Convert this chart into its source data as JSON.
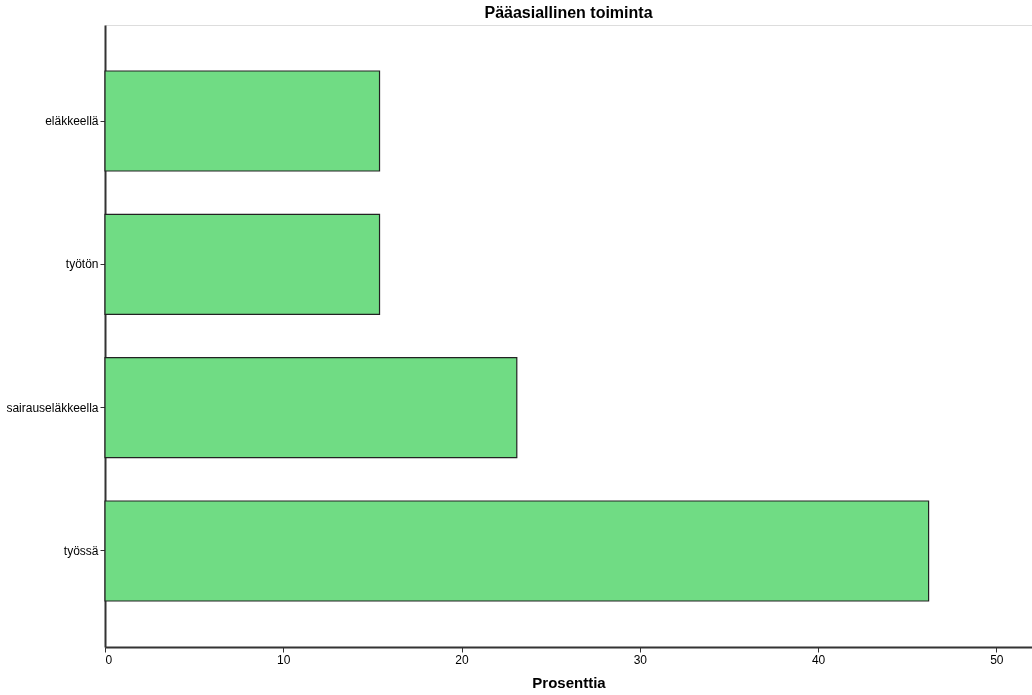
{
  "chart_data": {
    "type": "bar",
    "orientation": "horizontal",
    "title": "Pääasiallinen toiminta",
    "xlabel": "Prosenttia",
    "categories": [
      "eläkkeellä",
      "työtön",
      "sairauseläkkeella",
      "työssä"
    ],
    "values": [
      15.4,
      15.4,
      23.1,
      46.2
    ],
    "color": "#70dc84",
    "xlim": [
      0,
      52
    ],
    "xticks": [
      0,
      10,
      20,
      30,
      40,
      50
    ],
    "grid": false
  }
}
